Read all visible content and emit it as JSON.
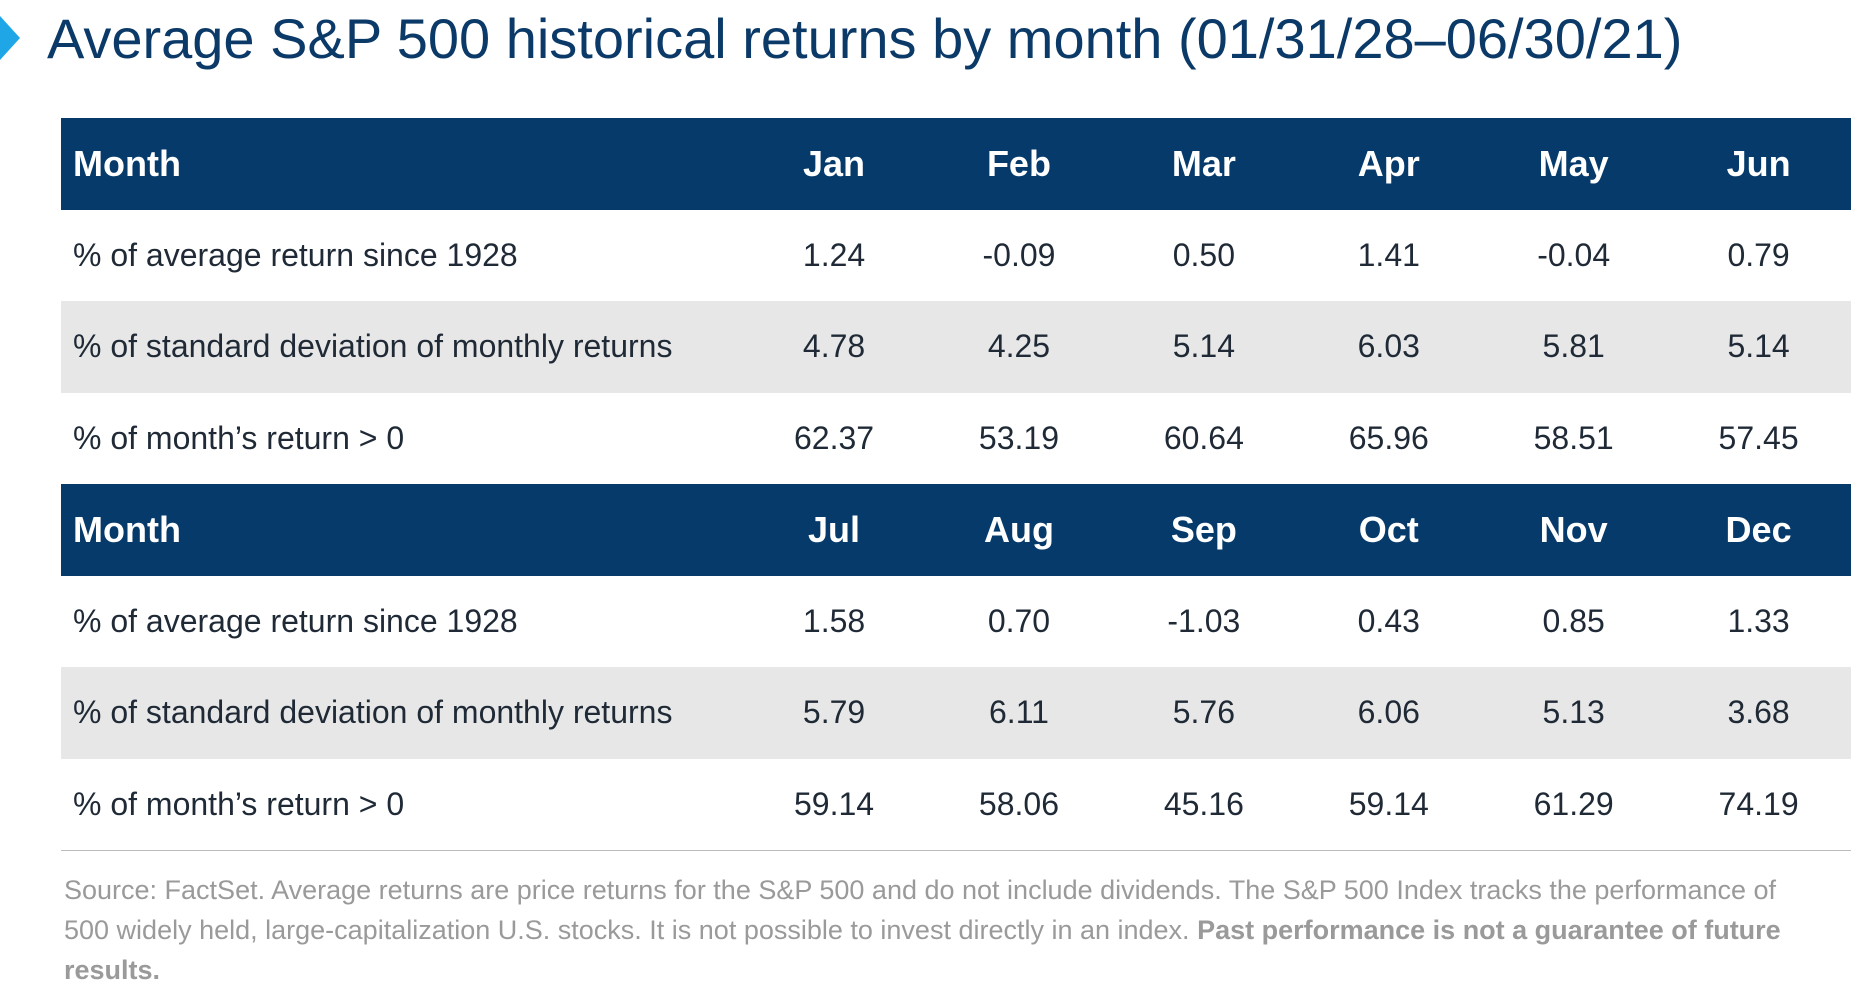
{
  "title": "Average S&P 500 historical returns by month (01/31/28–06/30/21)",
  "colors": {
    "title": "#0b3a68",
    "header_background": "#053a6b",
    "header_text": "#ffffff",
    "shaded_row": "#e7e7e7",
    "marker": "#1ea6e6",
    "source_text": "#9a9a9a"
  },
  "chart_data": {
    "type": "table",
    "title": "Average S&P 500 historical returns by month (01/31/28–06/30/21)",
    "row_labels": {
      "header": "Month",
      "avg_return": "% of average return since 1928",
      "std_dev": "% of standard deviation of monthly returns",
      "positive": "% of month’s return > 0"
    },
    "sections": [
      {
        "months": [
          "Jan",
          "Feb",
          "Mar",
          "Apr",
          "May",
          "Jun"
        ],
        "avg_return": [
          "1.24",
          "-0.09",
          "0.50",
          "1.41",
          "-0.04",
          "0.79"
        ],
        "std_dev": [
          "4.78",
          "4.25",
          "5.14",
          "6.03",
          "5.81",
          "5.14"
        ],
        "positive": [
          "62.37",
          "53.19",
          "60.64",
          "65.96",
          "58.51",
          "57.45"
        ]
      },
      {
        "months": [
          "Jul",
          "Aug",
          "Sep",
          "Oct",
          "Nov",
          "Dec"
        ],
        "avg_return": [
          "1.58",
          "0.70",
          "-1.03",
          "0.43",
          "0.85",
          "1.33"
        ],
        "std_dev": [
          "5.79",
          "6.11",
          "5.76",
          "6.06",
          "5.13",
          "3.68"
        ],
        "positive": [
          "59.14",
          "58.06",
          "45.16",
          "59.14",
          "61.29",
          "74.19"
        ]
      }
    ]
  },
  "source": {
    "text": "Source: FactSet. Average returns are price returns for the S&P 500 and do not include dividends. The S&P 500 Index tracks the performance of 500 widely held, large-capitalization U.S. stocks. It is not possible to invest directly in an index. ",
    "bold": "Past performance is not a guarantee of future results."
  }
}
